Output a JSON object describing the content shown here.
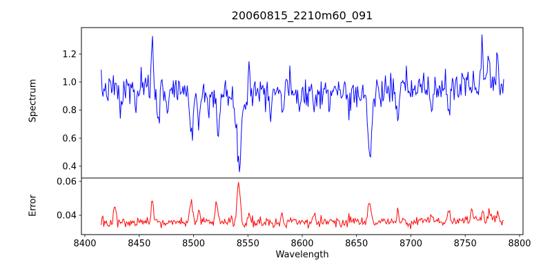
{
  "figure": {
    "title": "20060815_2210m60_091",
    "background": "#ffffff",
    "text_color": "#000000",
    "axis_color": "#000000"
  },
  "chart_data": {
    "type": "line",
    "title": "20060815_2210m60_091",
    "xlabel": "Wavelength",
    "xlim": [
      8396.8,
      8803.2
    ],
    "xticks": [
      {
        "value": 8400,
        "label": "8400"
      },
      {
        "value": 8450,
        "label": "8450"
      },
      {
        "value": 8500,
        "label": "8500"
      },
      {
        "value": 8550,
        "label": "8550"
      },
      {
        "value": 8600,
        "label": "8600"
      },
      {
        "value": 8650,
        "label": "8650"
      },
      {
        "value": 8700,
        "label": "8700"
      },
      {
        "value": 8750,
        "label": "8750"
      },
      {
        "value": 8800,
        "label": "8800"
      }
    ],
    "grid": false,
    "legend": "none",
    "subplots": [
      {
        "name": "spectrum",
        "ylabel": "Spectrum",
        "line_color": "#0000ff",
        "line_width": 1.0,
        "ylim": [
          0.316,
          1.388
        ],
        "yticks": [
          {
            "value": 0.4,
            "label": "0.4"
          },
          {
            "value": 0.6,
            "label": "0.6"
          },
          {
            "value": 0.8,
            "label": "0.8"
          },
          {
            "value": 1.0,
            "label": "1.0"
          },
          {
            "value": 1.2,
            "label": "1.2"
          }
        ],
        "x_range": [
          8415,
          8786
        ],
        "x_step": 0.8,
        "seed": 7,
        "noise_sigma": 0.052,
        "continuum": [
          [
            8415,
            0.945
          ],
          [
            8450,
            0.95
          ],
          [
            8490,
            0.945
          ],
          [
            8520,
            0.935
          ],
          [
            8535,
            0.9
          ],
          [
            8546,
            0.93
          ],
          [
            8560,
            0.95
          ],
          [
            8640,
            0.94
          ],
          [
            8655,
            0.93
          ],
          [
            8670,
            0.94
          ],
          [
            8700,
            0.95
          ],
          [
            8740,
            0.965
          ],
          [
            8786,
            1.0
          ]
        ],
        "features": [
          {
            "center": 8433.0,
            "amp": -0.15,
            "sigma": 1.2
          },
          {
            "center": 8447.0,
            "amp": -0.13,
            "sigma": 1.0
          },
          {
            "center": 8462.0,
            "amp": 0.34,
            "sigma": 0.9
          },
          {
            "center": 8468.0,
            "amp": -0.2,
            "sigma": 1.2
          },
          {
            "center": 8476.0,
            "amp": -0.14,
            "sigma": 1.0
          },
          {
            "center": 8498.0,
            "amp": -0.36,
            "sigma": 1.4
          },
          {
            "center": 8505.0,
            "amp": -0.24,
            "sigma": 1.1
          },
          {
            "center": 8514.0,
            "amp": -0.2,
            "sigma": 1.0
          },
          {
            "center": 8523.0,
            "amp": -0.25,
            "sigma": 1.2
          },
          {
            "center": 8542.1,
            "amp": -0.46,
            "sigma": 1.5
          },
          {
            "center": 8542.1,
            "amp": -0.1,
            "sigma": 6.0
          },
          {
            "center": 8551.0,
            "amp": 0.26,
            "sigma": 0.8
          },
          {
            "center": 8571.0,
            "amp": -0.13,
            "sigma": 1.0
          },
          {
            "center": 8582.0,
            "amp": -0.15,
            "sigma": 1.0
          },
          {
            "center": 8598.0,
            "amp": -0.12,
            "sigma": 1.0
          },
          {
            "center": 8611.0,
            "amp": -0.14,
            "sigma": 1.0
          },
          {
            "center": 8625.0,
            "amp": -0.13,
            "sigma": 1.0
          },
          {
            "center": 8643.0,
            "amp": -0.16,
            "sigma": 1.1
          },
          {
            "center": 8662.2,
            "amp": -0.42,
            "sigma": 1.6
          },
          {
            "center": 8662.2,
            "amp": -0.06,
            "sigma": 5.0
          },
          {
            "center": 8688.0,
            "amp": -0.26,
            "sigma": 1.1
          },
          {
            "center": 8719.0,
            "amp": -0.17,
            "sigma": 1.0
          },
          {
            "center": 8735.0,
            "amp": -0.18,
            "sigma": 1.0
          },
          {
            "center": 8765.5,
            "amp": 0.3,
            "sigma": 0.9
          },
          {
            "center": 8771.5,
            "amp": 0.26,
            "sigma": 0.8
          },
          {
            "center": 8779.5,
            "amp": 0.22,
            "sigma": 0.8
          }
        ]
      },
      {
        "name": "error",
        "ylabel": "Error",
        "line_color": "#ff0000",
        "line_width": 1.0,
        "ylim": [
          0.0286,
          0.062
        ],
        "yticks": [
          {
            "value": 0.04,
            "label": "0.04"
          },
          {
            "value": 0.06,
            "label": "0.06"
          }
        ],
        "x_range": [
          8415,
          8786
        ],
        "x_step": 0.8,
        "seed": 13,
        "noise_sigma": 0.0016,
        "continuum": [
          [
            8415,
            0.0353
          ],
          [
            8500,
            0.0358
          ],
          [
            8600,
            0.0357
          ],
          [
            8700,
            0.0362
          ],
          [
            8786,
            0.0368
          ]
        ],
        "features": [
          {
            "center": 8428.0,
            "amp": 0.01,
            "sigma": 1.2
          },
          {
            "center": 8462.0,
            "amp": 0.012,
            "sigma": 0.9
          },
          {
            "center": 8498.0,
            "amp": 0.014,
            "sigma": 1.3
          },
          {
            "center": 8505.0,
            "amp": 0.007,
            "sigma": 1.0
          },
          {
            "center": 8521.0,
            "amp": 0.012,
            "sigma": 1.0
          },
          {
            "center": 8541.5,
            "amp": 0.024,
            "sigma": 1.4
          },
          {
            "center": 8551.0,
            "amp": 0.006,
            "sigma": 0.8
          },
          {
            "center": 8582.0,
            "amp": 0.005,
            "sigma": 0.9
          },
          {
            "center": 8611.0,
            "amp": 0.004,
            "sigma": 0.9
          },
          {
            "center": 8643.0,
            "amp": 0.004,
            "sigma": 0.9
          },
          {
            "center": 8662.0,
            "amp": 0.013,
            "sigma": 1.4
          },
          {
            "center": 8688.0,
            "amp": 0.006,
            "sigma": 0.9
          },
          {
            "center": 8719.0,
            "amp": 0.005,
            "sigma": 0.9
          },
          {
            "center": 8735.0,
            "amp": 0.006,
            "sigma": 0.9
          },
          {
            "center": 8756.0,
            "amp": 0.007,
            "sigma": 0.9
          },
          {
            "center": 8766.0,
            "amp": 0.008,
            "sigma": 0.9
          },
          {
            "center": 8772.0,
            "amp": 0.007,
            "sigma": 0.8
          },
          {
            "center": 8780.0,
            "amp": 0.006,
            "sigma": 0.8
          }
        ]
      }
    ]
  }
}
